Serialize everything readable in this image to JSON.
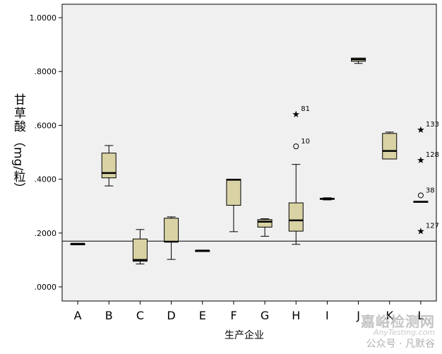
{
  "chart_data": {
    "type": "boxplot",
    "title": "",
    "xlabel": "生产企业",
    "ylabel": "甘草酸（mg/粒）",
    "ylabel_main": "甘草酸",
    "ylabel_unit": "（mg/粒）",
    "ylim": [
      0,
      1.0
    ],
    "yticks": [
      {
        "value": 0.0,
        "label": ".0000"
      },
      {
        "value": 0.2,
        "label": ".2000"
      },
      {
        "value": 0.4,
        "label": ".4000"
      },
      {
        "value": 0.6,
        "label": ".6000"
      },
      {
        "value": 0.8,
        "label": ".8000"
      },
      {
        "value": 1.0,
        "label": "1.0000"
      }
    ],
    "reference_line": 0.17,
    "categories": [
      "A",
      "B",
      "C",
      "D",
      "E",
      "F",
      "G",
      "H",
      "I",
      "J",
      "K",
      "L"
    ],
    "boxes": [
      {
        "category": "A",
        "min": 0.16,
        "q1": 0.16,
        "median": 0.16,
        "q3": 0.16,
        "max": 0.16
      },
      {
        "category": "B",
        "min": 0.375,
        "q1": 0.405,
        "median": 0.423,
        "q3": 0.497,
        "max": 0.525
      },
      {
        "category": "C",
        "min": 0.085,
        "q1": 0.095,
        "median": 0.1,
        "q3": 0.178,
        "max": 0.213
      },
      {
        "category": "D",
        "min": 0.102,
        "q1": 0.168,
        "median": 0.168,
        "q3": 0.255,
        "max": 0.26
      },
      {
        "category": "E",
        "min": 0.135,
        "q1": 0.135,
        "median": 0.135,
        "q3": 0.135,
        "max": 0.135
      },
      {
        "category": "F",
        "min": 0.205,
        "q1": 0.303,
        "median": 0.398,
        "q3": 0.4,
        "max": 0.4
      },
      {
        "category": "G",
        "min": 0.188,
        "q1": 0.222,
        "median": 0.242,
        "q3": 0.25,
        "max": 0.253
      },
      {
        "category": "H",
        "min": 0.158,
        "q1": 0.207,
        "median": 0.247,
        "q3": 0.312,
        "max": 0.455
      },
      {
        "category": "I",
        "min": 0.323,
        "q1": 0.325,
        "median": 0.327,
        "q3": 0.329,
        "max": 0.331
      },
      {
        "category": "J",
        "min": 0.83,
        "q1": 0.838,
        "median": 0.845,
        "q3": 0.85,
        "max": 0.85
      },
      {
        "category": "K",
        "min": 0.475,
        "q1": 0.475,
        "median": 0.505,
        "q3": 0.57,
        "max": 0.575
      },
      {
        "category": "L",
        "min": 0.314,
        "q1": 0.314,
        "median": 0.316,
        "q3": 0.318,
        "max": 0.318
      }
    ],
    "outliers": [
      {
        "category": "H",
        "value": 0.643,
        "marker": "star",
        "label": "81"
      },
      {
        "category": "H",
        "value": 0.522,
        "marker": "circle",
        "label": "10"
      },
      {
        "category": "L",
        "value": 0.585,
        "marker": "star",
        "label": "133"
      },
      {
        "category": "L",
        "value": 0.473,
        "marker": "star",
        "label": "128"
      },
      {
        "category": "L",
        "value": 0.34,
        "marker": "circle",
        "label": "38"
      },
      {
        "category": "L",
        "value": 0.209,
        "marker": "star",
        "label": "127"
      }
    ],
    "colors": {
      "plot_background": "#f0f0f0",
      "box_fill": "#d9d2a4",
      "line": "#000000"
    }
  },
  "watermark": {
    "brand": "嘉峪检测网",
    "url": "AnyTesting.com",
    "account": "公众号 · 凡默谷"
  }
}
